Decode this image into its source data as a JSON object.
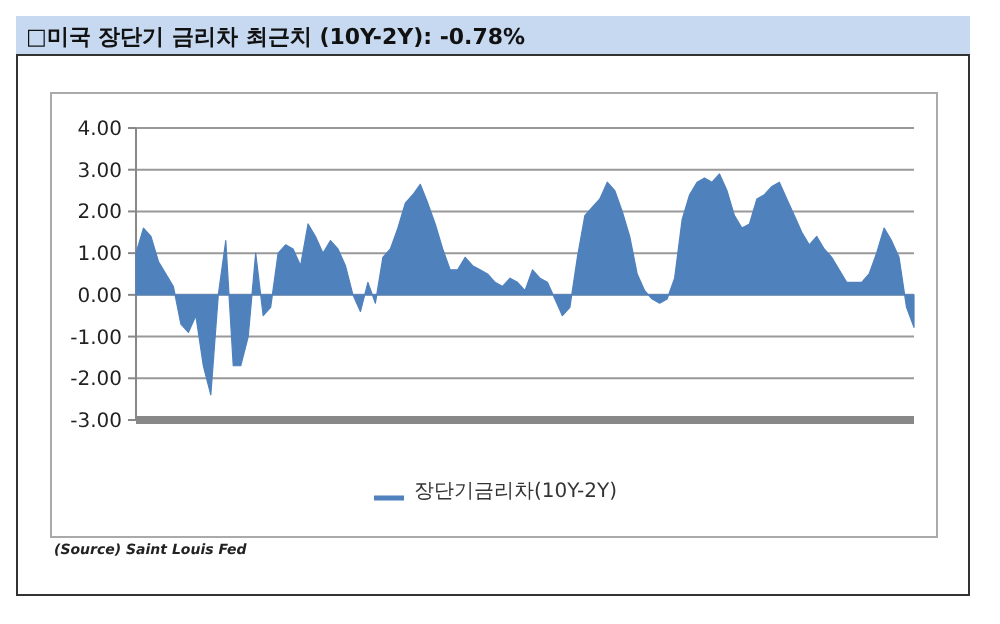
{
  "chart_data": {
    "type": "area",
    "title": "□미국 장단기 금리차 최근치 (10Y-2Y): -0.78%",
    "annotations": [
      "(Source) Saint Louis Fed"
    ],
    "categories": [
      null,
      null,
      null,
      null,
      null,
      null,
      null,
      null,
      null,
      null,
      null,
      null,
      null,
      null,
      null,
      null,
      null,
      null,
      null,
      null,
      null,
      null,
      null,
      null,
      null,
      null,
      null,
      null,
      null,
      null,
      null,
      null,
      null,
      null,
      null,
      null,
      null,
      null,
      null,
      null,
      null,
      null,
      null,
      null,
      null,
      null,
      null,
      null,
      null,
      null,
      null,
      null,
      null,
      null,
      null,
      null,
      null,
      null,
      null,
      null,
      null,
      null,
      null,
      null,
      null,
      null,
      null,
      null,
      null,
      null,
      null,
      null,
      null,
      null,
      null,
      null,
      null,
      null,
      null,
      null,
      null,
      null,
      null,
      null,
      null,
      null,
      null,
      null,
      null,
      null,
      null,
      null,
      null,
      null,
      null,
      null,
      null,
      null,
      null,
      null,
      null,
      null,
      null,
      null,
      null
    ],
    "series": [
      {
        "name": "장단기금리차(10Y-2Y)",
        "color": "#4f81bd",
        "values": [
          1.0,
          1.6,
          1.4,
          0.8,
          0.5,
          0.2,
          -0.7,
          -0.9,
          -0.5,
          -1.7,
          -2.4,
          0,
          1.3,
          -1.7,
          -1.7,
          -1.0,
          1.0,
          -0.5,
          -0.3,
          1.0,
          1.2,
          1.1,
          0.7,
          1.7,
          1.4,
          1.0,
          1.3,
          1.1,
          0.7,
          0.0,
          -0.4,
          0.3,
          -0.2,
          0.9,
          1.1,
          1.6,
          2.2,
          2.4,
          2.65,
          2.2,
          1.7,
          1.1,
          0.6,
          0.6,
          0.9,
          0.7,
          0.6,
          0.5,
          0.3,
          0.2,
          0.4,
          0.3,
          0.1,
          0.6,
          0.4,
          0.3,
          -0.1,
          -0.5,
          -0.3,
          0.9,
          1.9,
          2.1,
          2.3,
          2.7,
          2.5,
          2.0,
          1.4,
          0.5,
          0.1,
          -0.1,
          -0.2,
          -0.1,
          0.4,
          1.8,
          2.4,
          2.7,
          2.8,
          2.7,
          2.9,
          2.5,
          1.9,
          1.6,
          1.7,
          2.3,
          2.4,
          2.6,
          2.7,
          2.3,
          1.9,
          1.5,
          1.2,
          1.4,
          1.1,
          0.9,
          0.6,
          0.3,
          0.3,
          0.3,
          0.5,
          1.0,
          1.6,
          1.3,
          0.9,
          -0.3,
          -0.78
        ]
      }
    ],
    "ylim": [
      -3,
      4
    ],
    "yticks": [
      {
        "value": -3,
        "label": "-3.00"
      },
      {
        "value": -2,
        "label": "-2.00"
      },
      {
        "value": -1,
        "label": "-1.00"
      },
      {
        "value": 0,
        "label": "0.00"
      },
      {
        "value": 1,
        "label": "1.00"
      },
      {
        "value": 2,
        "label": "2.00"
      },
      {
        "value": 3,
        "label": "3.00"
      },
      {
        "value": 4,
        "label": "4.00"
      }
    ],
    "grid": "y",
    "legend": "bottom"
  }
}
